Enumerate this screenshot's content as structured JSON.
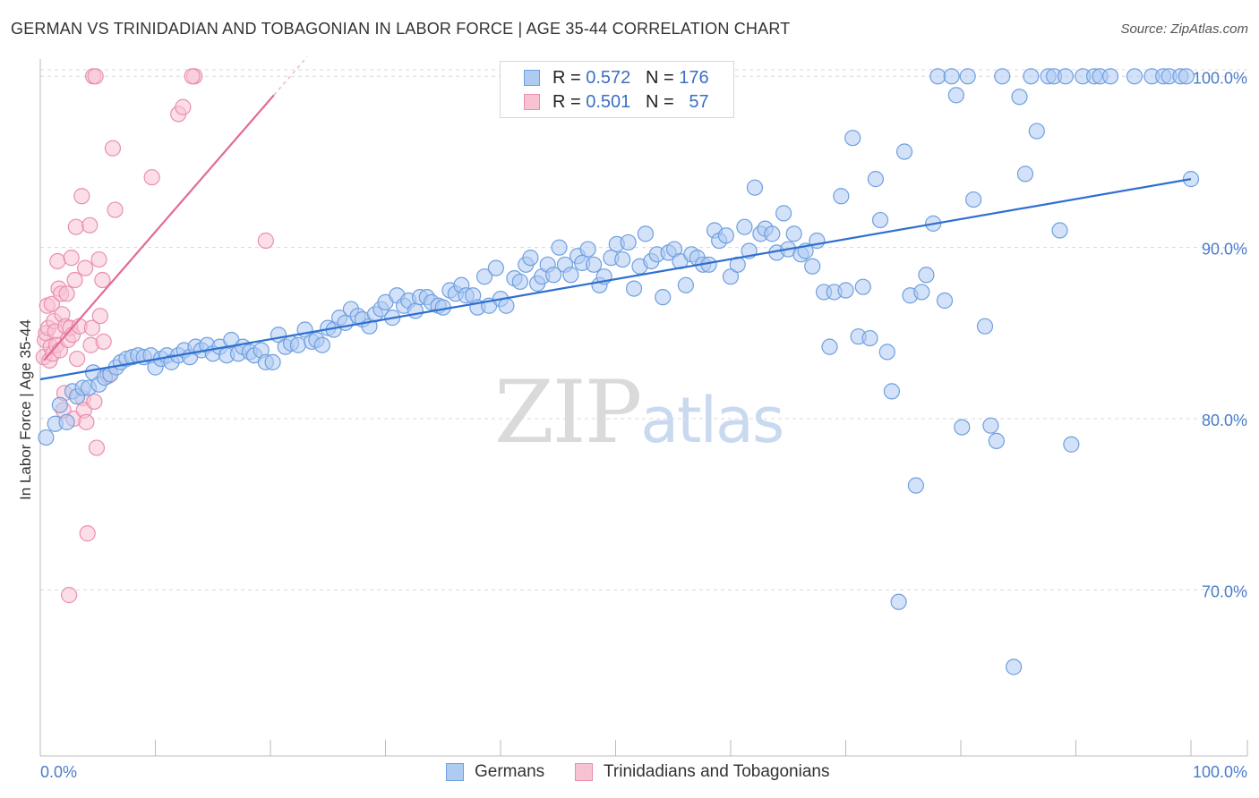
{
  "title": "GERMAN VS TRINIDADIAN AND TOBAGONIAN IN LABOR FORCE | AGE 35-44 CORRELATION CHART",
  "source": "Source: ZipAtlas.com",
  "watermark": {
    "zip": "ZIP",
    "atlas": "atlas"
  },
  "legend_top": [
    {
      "r_label": "R =",
      "r_value": "0.572",
      "n_label": "N =",
      "n_value": "176"
    },
    {
      "r_label": "R =",
      "r_value": "0.501",
      "n_label": "N =",
      "n_value": "57"
    }
  ],
  "colors": {
    "blue_fill": "#aecbf2",
    "blue_stroke": "#6f9fe0",
    "blue_line": "#2e6fd0",
    "pink_fill": "#f7c3d3",
    "pink_stroke": "#ea8fae",
    "pink_line": "#e3699a",
    "tick_text": "#4a7cc9",
    "grid": "#d9d9d9"
  },
  "chart_data": {
    "type": "scatter",
    "title": "GERMAN VS TRINIDADIAN AND TOBAGONIAN IN LABOR FORCE | AGE 35-44 CORRELATION CHART",
    "xlabel": "",
    "ylabel": "In Labor Force | Age 35-44",
    "xlim": [
      0,
      100
    ],
    "ylim": [
      60.3,
      100.8
    ],
    "x_tick_labels": [
      "0.0%",
      "100.0%"
    ],
    "y_ticks": [
      {
        "value": 70,
        "label": "70.0%"
      },
      {
        "value": 80,
        "label": "80.0%"
      },
      {
        "value": 90,
        "label": "90.0%"
      },
      {
        "value": 100,
        "label": "100.0%"
      }
    ],
    "grid": true,
    "legend_position": "bottom",
    "series": [
      {
        "name": "Germans",
        "r": 0.572,
        "n": 176,
        "trend": {
          "x": [
            0,
            100
          ],
          "y": [
            82.3,
            94.0
          ]
        },
        "points": [
          [
            0.5,
            78.9
          ],
          [
            1.3,
            79.7
          ],
          [
            1.7,
            80.8
          ],
          [
            2.3,
            79.8
          ],
          [
            2.8,
            81.6
          ],
          [
            3.2,
            81.3
          ],
          [
            3.7,
            81.8
          ],
          [
            4.2,
            81.8
          ],
          [
            4.6,
            82.7
          ],
          [
            5.1,
            82.0
          ],
          [
            5.6,
            82.4
          ],
          [
            6.1,
            82.6
          ],
          [
            6.6,
            83.0
          ],
          [
            7.0,
            83.3
          ],
          [
            7.5,
            83.5
          ],
          [
            8.0,
            83.6
          ],
          [
            8.5,
            83.7
          ],
          [
            9.0,
            83.6
          ],
          [
            9.6,
            83.7
          ],
          [
            10.0,
            83.0
          ],
          [
            10.5,
            83.5
          ],
          [
            11.0,
            83.7
          ],
          [
            11.4,
            83.3
          ],
          [
            12.0,
            83.7
          ],
          [
            12.5,
            84.0
          ],
          [
            13.0,
            83.6
          ],
          [
            13.5,
            84.2
          ],
          [
            14.0,
            84.0
          ],
          [
            14.5,
            84.3
          ],
          [
            15.0,
            83.8
          ],
          [
            15.6,
            84.2
          ],
          [
            16.2,
            83.7
          ],
          [
            16.6,
            84.6
          ],
          [
            17.2,
            83.8
          ],
          [
            17.6,
            84.2
          ],
          [
            18.2,
            83.9
          ],
          [
            18.6,
            83.7
          ],
          [
            19.2,
            84.0
          ],
          [
            19.6,
            83.3
          ],
          [
            20.2,
            83.3
          ],
          [
            20.7,
            84.9
          ],
          [
            21.3,
            84.2
          ],
          [
            21.8,
            84.4
          ],
          [
            22.4,
            84.3
          ],
          [
            23.0,
            85.2
          ],
          [
            23.6,
            84.5
          ],
          [
            24.0,
            84.6
          ],
          [
            24.5,
            84.3
          ],
          [
            25.0,
            85.3
          ],
          [
            25.5,
            85.2
          ],
          [
            26.0,
            85.9
          ],
          [
            26.5,
            85.6
          ],
          [
            27.0,
            86.4
          ],
          [
            27.6,
            86.0
          ],
          [
            28.0,
            85.8
          ],
          [
            28.6,
            85.4
          ],
          [
            29.1,
            86.1
          ],
          [
            29.6,
            86.4
          ],
          [
            30.0,
            86.8
          ],
          [
            30.6,
            85.9
          ],
          [
            31.0,
            87.2
          ],
          [
            31.6,
            86.6
          ],
          [
            32.0,
            86.9
          ],
          [
            32.6,
            86.3
          ],
          [
            33.0,
            87.1
          ],
          [
            33.6,
            87.1
          ],
          [
            34.0,
            86.8
          ],
          [
            34.6,
            86.6
          ],
          [
            35.0,
            86.5
          ],
          [
            35.6,
            87.5
          ],
          [
            36.1,
            87.3
          ],
          [
            36.6,
            87.8
          ],
          [
            37.0,
            87.2
          ],
          [
            37.6,
            87.2
          ],
          [
            38.0,
            86.5
          ],
          [
            38.6,
            88.3
          ],
          [
            39.0,
            86.6
          ],
          [
            39.6,
            88.8
          ],
          [
            40.0,
            87.0
          ],
          [
            40.5,
            86.6
          ],
          [
            41.2,
            88.2
          ],
          [
            41.7,
            88.0
          ],
          [
            42.2,
            89.0
          ],
          [
            42.6,
            89.4
          ],
          [
            43.2,
            87.9
          ],
          [
            43.6,
            88.3
          ],
          [
            44.1,
            89.0
          ],
          [
            44.6,
            88.4
          ],
          [
            45.1,
            90.0
          ],
          [
            45.6,
            89.0
          ],
          [
            46.1,
            88.4
          ],
          [
            46.7,
            89.5
          ],
          [
            47.1,
            89.1
          ],
          [
            47.6,
            89.9
          ],
          [
            48.1,
            89.0
          ],
          [
            48.6,
            87.8
          ],
          [
            49.0,
            88.3
          ],
          [
            49.6,
            89.4
          ],
          [
            50.1,
            90.2
          ],
          [
            50.6,
            89.3
          ],
          [
            51.1,
            90.3
          ],
          [
            51.6,
            87.6
          ],
          [
            52.1,
            88.9
          ],
          [
            52.6,
            90.8
          ],
          [
            53.1,
            89.2
          ],
          [
            53.6,
            89.6
          ],
          [
            54.1,
            87.1
          ],
          [
            54.6,
            89.7
          ],
          [
            55.1,
            89.9
          ],
          [
            55.6,
            89.2
          ],
          [
            56.1,
            87.8
          ],
          [
            56.6,
            89.6
          ],
          [
            57.1,
            89.4
          ],
          [
            57.6,
            89.0
          ],
          [
            58.1,
            89.0
          ],
          [
            58.6,
            91.0
          ],
          [
            59.0,
            90.4
          ],
          [
            59.6,
            90.7
          ],
          [
            60.0,
            88.3
          ],
          [
            60.6,
            89.0
          ],
          [
            61.2,
            91.2
          ],
          [
            61.6,
            89.8
          ],
          [
            62.1,
            93.5
          ],
          [
            62.6,
            90.8
          ],
          [
            63.0,
            91.1
          ],
          [
            63.6,
            90.8
          ],
          [
            64.0,
            89.7
          ],
          [
            64.6,
            92.0
          ],
          [
            65.0,
            89.9
          ],
          [
            65.5,
            90.8
          ],
          [
            66.1,
            89.6
          ],
          [
            66.5,
            89.8
          ],
          [
            67.1,
            88.9
          ],
          [
            67.5,
            90.4
          ],
          [
            68.1,
            87.4
          ],
          [
            68.6,
            84.2
          ],
          [
            69.0,
            87.4
          ],
          [
            69.6,
            93.0
          ],
          [
            70.0,
            87.5
          ],
          [
            70.6,
            96.4
          ],
          [
            71.1,
            84.8
          ],
          [
            71.5,
            87.7
          ],
          [
            72.1,
            84.7
          ],
          [
            72.6,
            94.0
          ],
          [
            73.0,
            91.6
          ],
          [
            73.6,
            83.9
          ],
          [
            74.0,
            81.6
          ],
          [
            74.6,
            69.3
          ],
          [
            75.1,
            95.6
          ],
          [
            75.6,
            87.2
          ],
          [
            76.1,
            76.1
          ],
          [
            76.6,
            87.4
          ],
          [
            77.0,
            88.4
          ],
          [
            77.6,
            91.4
          ],
          [
            78.0,
            100.0
          ],
          [
            78.6,
            86.9
          ],
          [
            79.2,
            100.0
          ],
          [
            79.6,
            98.9
          ],
          [
            80.1,
            79.5
          ],
          [
            80.6,
            100.0
          ],
          [
            81.1,
            92.8
          ],
          [
            82.1,
            85.4
          ],
          [
            82.6,
            79.6
          ],
          [
            83.1,
            78.7
          ],
          [
            83.6,
            100.0
          ],
          [
            84.6,
            65.5
          ],
          [
            85.1,
            98.8
          ],
          [
            85.6,
            94.3
          ],
          [
            86.1,
            100.0
          ],
          [
            86.6,
            96.8
          ],
          [
            87.6,
            100.0
          ],
          [
            88.1,
            100.0
          ],
          [
            88.6,
            91.0
          ],
          [
            89.1,
            100.0
          ],
          [
            89.6,
            78.5
          ],
          [
            90.6,
            100.0
          ],
          [
            91.6,
            100.0
          ],
          [
            92.1,
            100.0
          ],
          [
            93.0,
            100.0
          ],
          [
            95.1,
            100.0
          ],
          [
            96.6,
            100.0
          ],
          [
            97.6,
            100.0
          ],
          [
            98.1,
            100.0
          ],
          [
            99.1,
            100.0
          ],
          [
            99.6,
            100.0
          ],
          [
            100.0,
            94.0
          ]
        ]
      },
      {
        "name": "Trinidadians and Tobagonians",
        "r": 0.501,
        "n": 57,
        "trend": {
          "x": [
            0.3,
            20.3
          ],
          "y": [
            83.4,
            98.9
          ]
        },
        "points": [
          [
            0.3,
            83.6
          ],
          [
            0.4,
            84.6
          ],
          [
            0.5,
            85.0
          ],
          [
            0.6,
            86.6
          ],
          [
            0.7,
            85.3
          ],
          [
            0.8,
            83.4
          ],
          [
            0.9,
            84.2
          ],
          [
            1.0,
            86.7
          ],
          [
            1.1,
            83.8
          ],
          [
            1.2,
            85.7
          ],
          [
            1.3,
            85.1
          ],
          [
            1.4,
            84.3
          ],
          [
            1.5,
            89.2
          ],
          [
            1.6,
            87.6
          ],
          [
            1.7,
            84.0
          ],
          [
            1.8,
            87.3
          ],
          [
            1.9,
            86.1
          ],
          [
            2.0,
            80.5
          ],
          [
            2.1,
            81.5
          ],
          [
            2.2,
            85.4
          ],
          [
            2.3,
            87.3
          ],
          [
            2.4,
            84.6
          ],
          [
            2.5,
            69.7
          ],
          [
            2.6,
            85.3
          ],
          [
            2.7,
            89.4
          ],
          [
            2.8,
            84.9
          ],
          [
            2.9,
            80.0
          ],
          [
            3.0,
            88.1
          ],
          [
            3.1,
            91.2
          ],
          [
            3.2,
            83.5
          ],
          [
            3.4,
            85.4
          ],
          [
            3.6,
            93.0
          ],
          [
            3.7,
            81.2
          ],
          [
            3.8,
            80.5
          ],
          [
            3.9,
            88.8
          ],
          [
            4.0,
            79.8
          ],
          [
            4.1,
            73.3
          ],
          [
            4.3,
            91.3
          ],
          [
            4.4,
            84.3
          ],
          [
            4.5,
            85.3
          ],
          [
            4.7,
            81.0
          ],
          [
            4.9,
            78.3
          ],
          [
            5.1,
            89.3
          ],
          [
            5.2,
            86.0
          ],
          [
            5.4,
            88.1
          ],
          [
            5.5,
            84.5
          ],
          [
            5.9,
            82.5
          ],
          [
            6.3,
            95.8
          ],
          [
            6.5,
            92.2
          ],
          [
            9.7,
            94.1
          ],
          [
            12.0,
            97.8
          ],
          [
            12.4,
            98.2
          ],
          [
            13.4,
            100.0
          ],
          [
            19.6,
            90.4
          ],
          [
            4.6,
            100.0
          ],
          [
            4.8,
            100.0
          ],
          [
            13.2,
            100.0
          ]
        ]
      }
    ]
  },
  "bottom_legend": [
    {
      "label": "Germans"
    },
    {
      "label": "Trinidadians and Tobagonians"
    }
  ]
}
